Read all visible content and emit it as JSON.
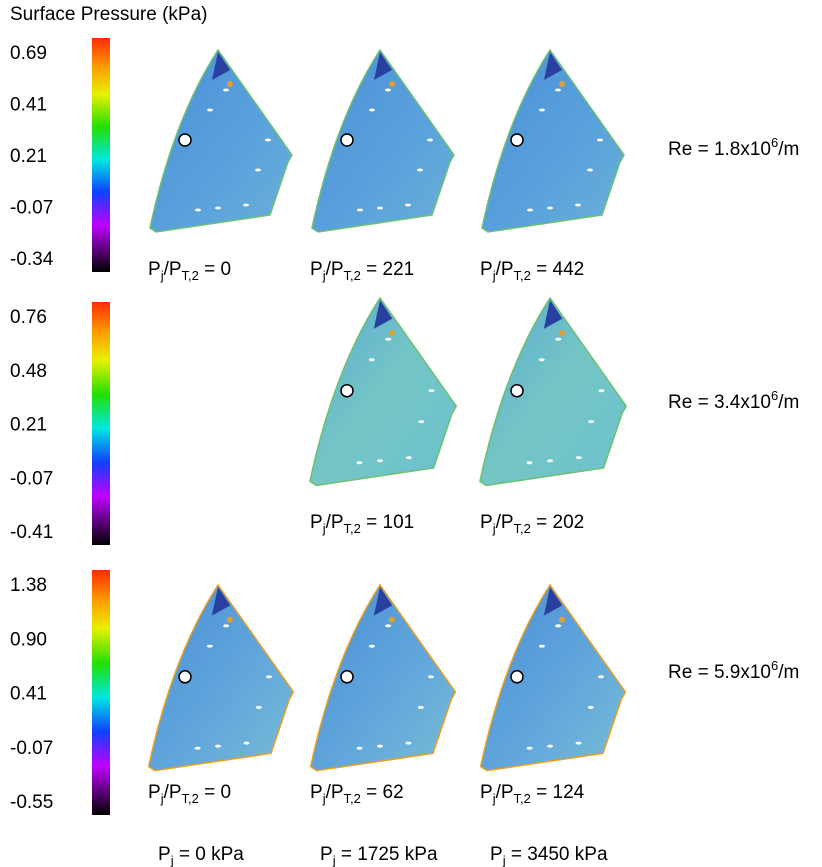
{
  "title": "Surface Pressure (kPa)",
  "colorbars": [
    {
      "ticks": [
        "0.69",
        "0.41",
        "0.21",
        "-0.07",
        "-0.34"
      ]
    },
    {
      "ticks": [
        "0.76",
        "0.48",
        "0.21",
        "-0.07",
        "-0.41"
      ]
    },
    {
      "ticks": [
        "1.38",
        "0.90",
        "0.41",
        "-0.07",
        "-0.55"
      ]
    }
  ],
  "rows": [
    {
      "re": [
        "Re = 1.8x10",
        "6",
        "/m"
      ],
      "panels": [
        [
          "P",
          "j",
          "/P",
          "T,2",
          " = 0"
        ],
        [
          "P",
          "j",
          "/P",
          "T,2",
          " = 221"
        ],
        [
          "P",
          "j",
          "/P",
          "T,2",
          " = 442"
        ]
      ]
    },
    {
      "re": [
        "Re = 3.4x10",
        "6",
        "/m"
      ],
      "panels": [
        null,
        [
          "P",
          "j",
          "/P",
          "T,2",
          " = 101"
        ],
        [
          "P",
          "j",
          "/P",
          "T,2",
          " = 202"
        ]
      ]
    },
    {
      "re": [
        "Re = 5.9x10",
        "6",
        "/m"
      ],
      "panels": [
        [
          "P",
          "j",
          "/P",
          "T,2",
          " = 0"
        ],
        [
          "P",
          "j",
          "/P",
          "T,2",
          " = 62"
        ],
        [
          "P",
          "j",
          "/P",
          "T,2",
          " = 124"
        ]
      ]
    }
  ],
  "pj_labels": [
    [
      "P",
      "j",
      " = 0 kPa"
    ],
    [
      "P",
      "j",
      " = 1725 kPa"
    ],
    [
      "P",
      "j",
      " = 3450 kPa"
    ]
  ]
}
